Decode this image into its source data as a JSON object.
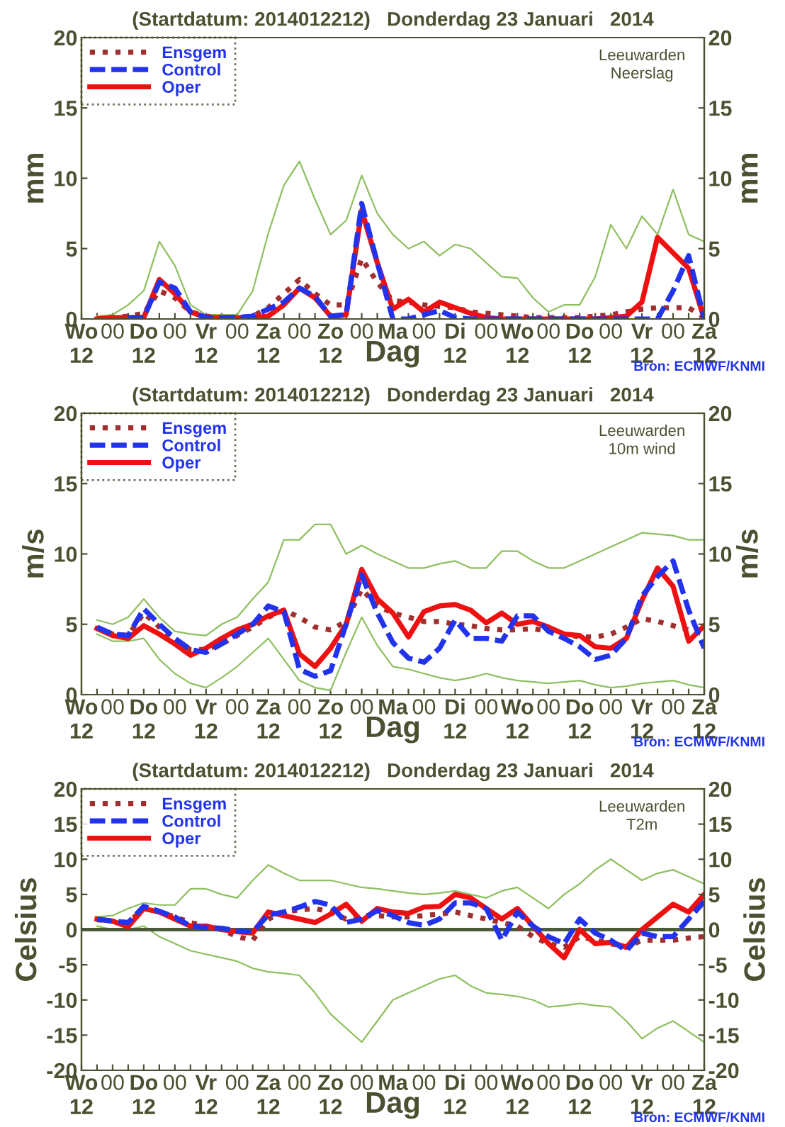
{
  "chart_data": [
    {
      "type": "line",
      "title": "(Startdatum: 2014012212)   Donderdag 23 Januari   2014",
      "xlabel": "Dag",
      "ylabel": "mm",
      "y2label": "mm",
      "annotations": [
        "Leeuwarden\nNeerslag",
        "Bron: ECMWF/KNMI"
      ],
      "categories": [
        "Wo\n12",
        null,
        "00",
        null,
        "Do\n12",
        null,
        "00",
        null,
        "Vr\n12",
        null,
        "00",
        null,
        "Za\n12",
        null,
        "00",
        null,
        "Zo\n12",
        null,
        "00",
        null,
        "Ma",
        null,
        "00",
        null,
        "Di\n12",
        null,
        "00",
        null,
        "Wo\n12",
        null,
        "00",
        null,
        "Do\n12",
        null,
        "00",
        null,
        "Vr\n12",
        null,
        "00",
        null,
        "Za\n12"
      ],
      "ylim": [
        0,
        20
      ],
      "yticks": [
        0,
        5,
        10,
        15,
        20
      ],
      "y2lim": [
        0,
        20
      ],
      "y2ticks": [
        0,
        5,
        10,
        15,
        20
      ],
      "legend": "top left",
      "series": [
        {
          "color": "#8fbf5f",
          "line_style": "solid",
          "values": [
            null,
            0.2,
            0.3,
            1.0,
            2.0,
            5.5,
            3.8,
            1.0,
            0.3,
            0.3,
            0.3,
            2.0,
            6.1,
            9.5,
            11.2,
            8.5,
            6.0,
            7.0,
            10.2,
            7.5,
            6.0,
            5.0,
            5.5,
            4.5,
            5.3,
            5.0,
            4.0,
            3.0,
            2.9,
            1.5,
            0.5,
            1.0,
            1.0,
            3.0,
            6.7,
            5.0,
            7.3,
            6.0,
            9.2,
            6.0,
            5.5
          ]
        },
        {
          "name": "Ensgem",
          "color": "#a03030",
          "line_style": "dotted",
          "values": [
            null,
            0,
            0.1,
            0.2,
            0.4,
            2.0,
            1.5,
            0.5,
            0.2,
            0.1,
            0.1,
            0.2,
            0.8,
            1.8,
            2.8,
            1.8,
            1.0,
            1.0,
            4.3,
            2.6,
            1.3,
            1.2,
            1.0,
            0.9,
            0.8,
            0.5,
            0.4,
            0.3,
            0.2,
            0.1,
            0.1,
            0.1,
            0.1,
            0.2,
            0.3,
            0.5,
            0.7,
            0.8,
            0.8,
            0.8,
            0.1
          ]
        },
        {
          "name": "Control",
          "color": "#2233ee",
          "line_style": "dashed",
          "values": [
            null,
            null,
            null,
            0.1,
            0.1,
            2.6,
            2.2,
            0.5,
            0.1,
            0.1,
            0.1,
            0.2,
            0.7,
            1.2,
            2.2,
            1.6,
            0.2,
            0.3,
            8.2,
            4.0,
            0,
            0,
            0.3,
            0.6,
            0.1,
            0,
            0,
            0,
            0,
            0,
            0,
            0,
            0,
            0,
            0,
            0,
            0,
            0,
            2.0,
            4.5,
            0
          ]
        },
        {
          "name": "Oper",
          "color": "#ee1111",
          "line_style": "solid",
          "values": [
            null,
            0,
            0.1,
            0.1,
            0.1,
            2.8,
            1.8,
            0.5,
            0.1,
            0.1,
            0.1,
            0.1,
            0.2,
            1.0,
            2.2,
            1.5,
            0.2,
            0.3,
            7.7,
            4.0,
            0.7,
            1.4,
            0.5,
            1.2,
            0.8,
            0.4,
            0.1,
            0,
            0,
            0,
            0,
            0,
            0,
            0,
            0.1,
            0.2,
            1.2,
            5.8,
            4.7,
            3.6,
            0
          ]
        }
      ]
    },
    {
      "type": "line",
      "title": "(Startdatum: 2014012212)   Donderdag 23 Januari   2014",
      "xlabel": "Dag",
      "ylabel": "m/s",
      "y2label": "m/s",
      "annotations": [
        "Leeuwarden\n10m wind",
        "Bron: ECMWF/KNMI"
      ],
      "categories": [
        "Wo\n12",
        null,
        "00",
        null,
        "Do\n12",
        null,
        "00",
        null,
        "Vr\n12",
        null,
        "00",
        null,
        "Za\n12",
        null,
        "00",
        null,
        "Zo\n12",
        null,
        "00",
        null,
        "Ma",
        null,
        "00",
        null,
        "Di\n12",
        null,
        "00",
        null,
        "Wo\n12",
        null,
        "00",
        null,
        "Do\n12",
        null,
        "00",
        null,
        "Vr\n12",
        null,
        "00",
        null,
        "Za\n12"
      ],
      "ylim": [
        0,
        20
      ],
      "yticks": [
        0,
        5,
        10,
        15,
        20
      ],
      "y2lim": [
        0,
        20
      ],
      "y2ticks": [
        0,
        5,
        10,
        15,
        20
      ],
      "legend": "top left",
      "series": [
        {
          "color": "#8fbf5f",
          "line_style": "solid",
          "values": [
            null,
            5.3,
            5.0,
            5.5,
            6.8,
            5.5,
            4.5,
            4.3,
            4.2,
            5.0,
            5.5,
            6.8,
            8.0,
            11.0,
            11.0,
            12.1,
            12.1,
            10.0,
            10.6,
            10.0,
            9.5,
            9.0,
            9.0,
            9.3,
            9.5,
            9.0,
            9.0,
            10.2,
            10.2,
            9.5,
            9.0,
            9.0,
            9.5,
            10.0,
            10.5,
            11.0,
            11.5,
            11.4,
            11.3,
            11.0,
            11.0
          ]
        },
        {
          "color": "#8fbf5f",
          "line_style": "solid",
          "values": [
            null,
            4.3,
            3.8,
            3.8,
            4.0,
            2.5,
            1.5,
            0.8,
            0.5,
            1.2,
            2.0,
            3.0,
            4.0,
            2.5,
            1.0,
            0.5,
            0.3,
            3.0,
            5.5,
            3.5,
            2.0,
            1.8,
            1.5,
            1.2,
            1.0,
            1.2,
            1.5,
            1.2,
            1.0,
            0.9,
            0.8,
            0.9,
            1.0,
            0.7,
            0.5,
            0.6,
            0.8,
            0.9,
            1.0,
            0.7,
            0.5
          ]
        },
        {
          "name": "Ensgem",
          "color": "#a03030",
          "line_style": "dotted",
          "values": [
            null,
            4.7,
            4.3,
            4.2,
            5.8,
            4.8,
            3.8,
            3.2,
            3.2,
            3.6,
            4.2,
            4.8,
            5.5,
            6.0,
            5.5,
            4.8,
            4.6,
            5.2,
            7.5,
            6.3,
            5.8,
            5.5,
            5.2,
            5.2,
            5.0,
            4.9,
            4.7,
            4.6,
            4.6,
            4.7,
            4.5,
            4.3,
            4.1,
            4.1,
            4.3,
            4.8,
            5.4,
            5.2,
            4.9,
            4.6,
            4.3
          ]
        },
        {
          "name": "Control",
          "color": "#2233ee",
          "line_style": "dashed",
          "values": [
            null,
            4.8,
            4.3,
            4.2,
            6.1,
            5.0,
            4.0,
            3.2,
            3.0,
            3.6,
            4.3,
            5.0,
            6.3,
            5.9,
            1.8,
            1.3,
            1.7,
            5.0,
            8.5,
            5.8,
            3.7,
            2.6,
            2.3,
            3.3,
            5.3,
            4.0,
            4.0,
            3.8,
            5.6,
            5.6,
            4.5,
            4.0,
            3.4,
            2.5,
            2.8,
            4.0,
            7.0,
            8.4,
            9.5,
            6.0,
            3.3
          ]
        },
        {
          "name": "Oper",
          "color": "#ee1111",
          "line_style": "solid",
          "values": [
            null,
            4.7,
            4.2,
            4.0,
            4.9,
            4.3,
            3.6,
            2.8,
            3.3,
            4.0,
            4.6,
            5.0,
            5.6,
            6.0,
            2.9,
            2.0,
            3.3,
            5.0,
            8.9,
            6.8,
            5.8,
            4.1,
            5.9,
            6.3,
            6.4,
            6.0,
            5.1,
            5.8,
            5.0,
            5.2,
            4.8,
            4.3,
            4.2,
            3.4,
            3.3,
            4.0,
            6.7,
            9.0,
            7.7,
            3.8,
            4.9
          ]
        }
      ]
    },
    {
      "type": "line",
      "title": "(Startdatum: 2014012212)   Donderdag 23 Januari   2014",
      "xlabel": "Dag",
      "ylabel": "Celsius",
      "y2label": "Celsius",
      "annotations": [
        "Leeuwarden\nT2m",
        "Bron: ECMWF/KNMI"
      ],
      "categories": [
        "Wo\n12",
        null,
        "00",
        null,
        "Do\n12",
        null,
        "00",
        null,
        "Vr\n12",
        null,
        "00",
        null,
        "Za\n12",
        null,
        "00",
        null,
        "Zo\n12",
        null,
        "00",
        null,
        "Ma",
        null,
        "00",
        null,
        "Di\n12",
        null,
        "00",
        null,
        "Wo\n12",
        null,
        "00",
        null,
        "Do\n12",
        null,
        "00",
        null,
        "Vr\n12",
        null,
        "00",
        null,
        "Za\n12"
      ],
      "ylim": [
        -20,
        20
      ],
      "yticks": [
        -20,
        -15,
        -10,
        -5,
        0,
        5,
        10,
        15,
        20
      ],
      "y2lim": [
        -20,
        20
      ],
      "y2ticks": [
        -20,
        -15,
        -10,
        -5,
        0,
        5,
        10,
        15,
        20
      ],
      "legend": "top left",
      "ref_lines": [
        {
          "axis": "y",
          "value": 0,
          "color": "#4a5a3a"
        }
      ],
      "series": [
        {
          "color": "#8fbf5f",
          "line_style": "solid",
          "values": [
            null,
            1.8,
            2.0,
            3.0,
            3.8,
            3.5,
            3.5,
            5.8,
            5.8,
            5.0,
            4.5,
            7.0,
            9.2,
            8.0,
            7.0,
            7.0,
            7.0,
            6.5,
            6.0,
            5.8,
            5.5,
            5.2,
            5.0,
            5.2,
            5.5,
            5.0,
            4.5,
            5.5,
            6.0,
            4.5,
            3.0,
            5.0,
            6.5,
            8.5,
            10.0,
            8.5,
            7.0,
            8.0,
            8.5,
            7.5,
            6.5
          ]
        },
        {
          "color": "#8fbf5f",
          "line_style": "solid",
          "values": [
            null,
            0.5,
            0.0,
            0.0,
            0.5,
            -1.0,
            -2.0,
            -3.0,
            -3.5,
            -4.0,
            -4.5,
            -5.5,
            -6.0,
            -6.2,
            -6.5,
            -9.0,
            -12.0,
            -14.0,
            -16.0,
            -13.0,
            -10.0,
            -9.0,
            -8.0,
            -7.0,
            -6.5,
            -8.0,
            -9.0,
            -9.2,
            -9.5,
            -10.0,
            -11.0,
            -10.8,
            -10.5,
            -10.8,
            -11.0,
            -13.0,
            -15.5,
            -14.0,
            -13.0,
            -14.5,
            -16.0
          ]
        },
        {
          "name": "Ensgem",
          "color": "#a03030",
          "line_style": "dotted",
          "values": [
            null,
            1.4,
            1.2,
            1.0,
            3.0,
            2.5,
            1.8,
            1.0,
            0.5,
            0,
            -1.0,
            -1.5,
            1.5,
            2.5,
            2.8,
            3.0,
            2.5,
            1.5,
            2.0,
            2.0,
            1.8,
            1.8,
            2.0,
            2.2,
            2.5,
            2.0,
            1.5,
            1.0,
            0.5,
            -1.0,
            -2.0,
            -2.5,
            -1.0,
            -1.5,
            -2.0,
            -2.5,
            -1.5,
            -1.5,
            -1.5,
            -1.2,
            -1.0
          ]
        },
        {
          "name": "Control",
          "color": "#2233ee",
          "line_style": "dashed",
          "values": [
            null,
            1.5,
            1.2,
            1.0,
            3.3,
            2.6,
            1.8,
            0.5,
            0.3,
            0.2,
            -0.2,
            -0.3,
            2.1,
            2.5,
            3.2,
            4.0,
            3.5,
            1.0,
            1.5,
            2.7,
            2.0,
            1.0,
            0.6,
            1.5,
            3.8,
            3.8,
            3.0,
            -1.5,
            2.5,
            0.5,
            -1.0,
            -2.0,
            1.5,
            -0.5,
            -1.5,
            -3.0,
            -0.5,
            -1.0,
            -1.0,
            1.5,
            4.0
          ]
        },
        {
          "name": "Oper",
          "color": "#ee1111",
          "line_style": "solid",
          "values": [
            null,
            1.5,
            1.2,
            0.4,
            3.0,
            2.5,
            1.5,
            0.5,
            0.5,
            0.0,
            -0.3,
            -0.5,
            2.5,
            2.0,
            1.5,
            1.0,
            2.2,
            3.6,
            1.2,
            3.0,
            2.5,
            2.3,
            3.2,
            3.3,
            5.0,
            4.5,
            3.0,
            1.5,
            3.0,
            0.5,
            -2.0,
            -4.0,
            0.0,
            -2.0,
            -1.8,
            -2.5,
            0.0,
            1.8,
            3.6,
            2.5,
            5.0
          ]
        }
      ]
    }
  ]
}
